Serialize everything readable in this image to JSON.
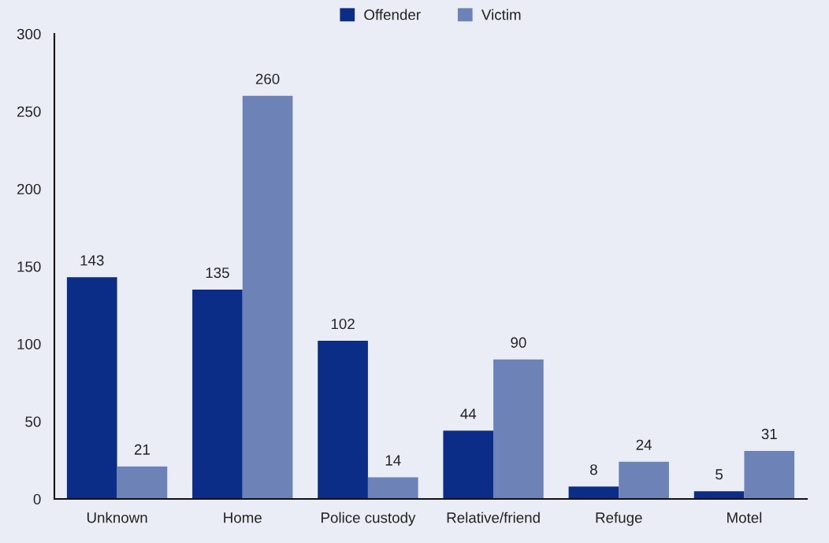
{
  "chart_data": {
    "type": "bar",
    "categories": [
      "Unknown",
      "Home",
      "Police custody",
      "Relative/friend",
      "Refuge",
      "Motel"
    ],
    "series": [
      {
        "name": "Offender",
        "color": "#0b2d87",
        "values": [
          143,
          135,
          102,
          44,
          8,
          5
        ]
      },
      {
        "name": "Victim",
        "color": "#6d82b6",
        "values": [
          21,
          260,
          14,
          90,
          24,
          31
        ]
      }
    ],
    "ylim": [
      0,
      300
    ],
    "yticks": [
      0,
      50,
      100,
      150,
      200,
      250,
      300
    ],
    "data_labels": true,
    "grid": false,
    "legend": "top"
  }
}
